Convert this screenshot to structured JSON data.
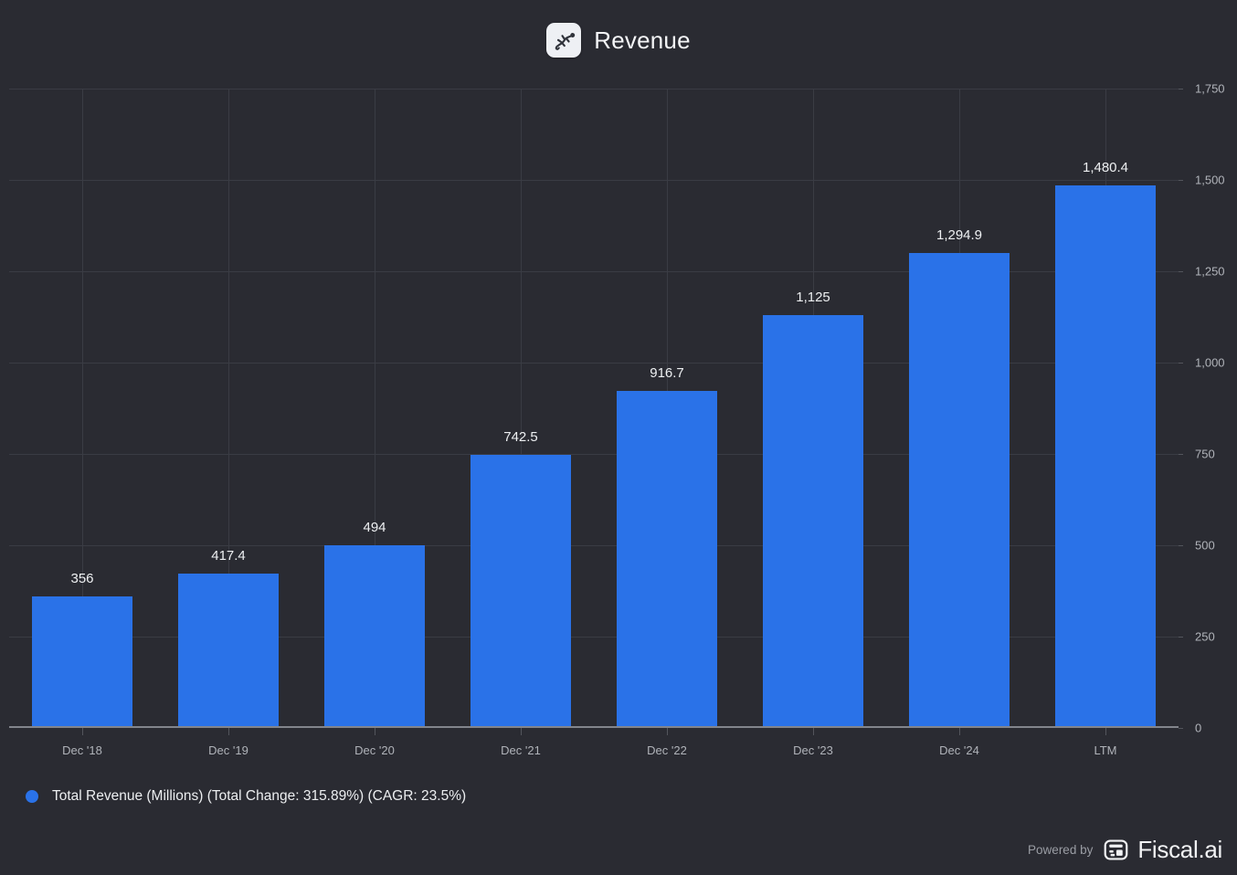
{
  "header": {
    "title": "Revenue",
    "icon": "gecko-icon"
  },
  "chart_data": {
    "type": "bar",
    "title": "Revenue",
    "categories": [
      "Dec '18",
      "Dec '19",
      "Dec '20",
      "Dec '21",
      "Dec '22",
      "Dec '23",
      "Dec '24",
      "LTM"
    ],
    "series": [
      {
        "name": "Total Revenue (Millions)",
        "values": [
          356,
          417.4,
          494,
          742.5,
          916.7,
          1125,
          1294.9,
          1480.4
        ]
      }
    ],
    "value_labels": [
      "356",
      "417.4",
      "494",
      "742.5",
      "916.7",
      "1,125",
      "1,294.9",
      "1,480.4"
    ],
    "xlabel": "",
    "ylabel": "",
    "ylim": [
      0,
      1750
    ],
    "y_ticks": [
      0,
      250,
      500,
      750,
      1000,
      1250,
      1500,
      1750
    ],
    "y_tick_labels": [
      "0",
      "250",
      "500",
      "750",
      "1,000",
      "1,250",
      "1,500",
      "1,750"
    ],
    "y_axis_side": "right",
    "grid": true,
    "bar_color": "#2a72e8",
    "legend_position": "bottom-left",
    "annotations": {
      "total_change": "315.89%",
      "cagr": "23.5%"
    }
  },
  "legend": {
    "label": "Total Revenue (Millions) (Total Change: 315.89%) (CAGR: 23.5%)",
    "marker": "circle-icon"
  },
  "footer": {
    "powered_by": "Powered by",
    "brand": "Fiscal.ai",
    "icon": "fiscal-ai-grid-icon"
  },
  "colors": {
    "background": "#2a2b32",
    "bar": "#2a72e8",
    "gridline": "#3a3c44",
    "axis_line": "#82858c",
    "tick_label": "#b0b3b9",
    "value_label": "#eef0f2",
    "title": "#f4f5f7",
    "powered_by_text": "#9a9da4"
  }
}
